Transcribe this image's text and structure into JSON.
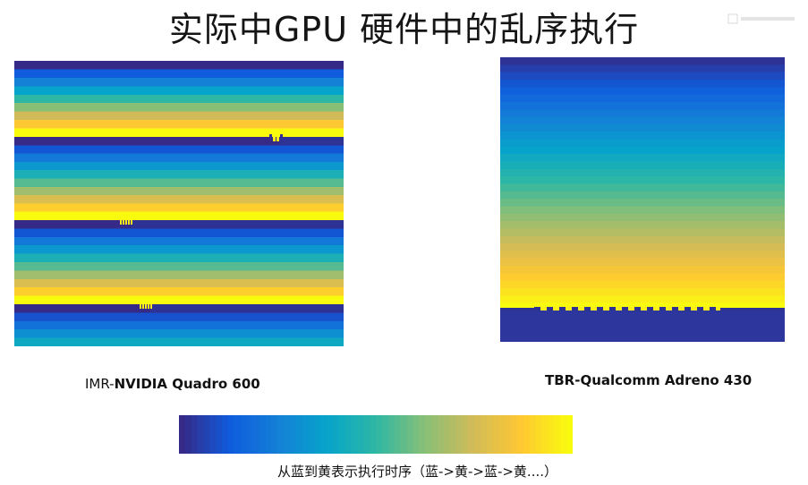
{
  "slide": {
    "title": "实际中GPU 硬件中的乱序执行"
  },
  "colors": {
    "parula": [
      "#352a87",
      "#0f5cdd",
      "#1481d6",
      "#06a4ca",
      "#2eb7a4",
      "#87bf77",
      "#d1bb59",
      "#fec832",
      "#f9fb0e"
    ]
  },
  "chart_data": [
    {
      "type": "heatmap",
      "name": "IMR-NVIDIA Quadro 600",
      "pattern": "horizontal tile bands, each band blue to yellow top to bottom, three repeated groups",
      "groups": 3
    },
    {
      "type": "heatmap",
      "name": "TBR-Qualcomm Adreno 430",
      "pattern": "single gradient blue to yellow top to bottom with checker seam near bottom then blue strip"
    }
  ],
  "captions": {
    "imr_prefix": "IMR-",
    "imr_name": "NVIDIA Quadro 600",
    "tbr": "TBR-Qualcomm Adreno 430"
  },
  "colorbar": {
    "label": "从蓝到黄表示执行时序（蓝->黄->蓝->黄....）"
  }
}
